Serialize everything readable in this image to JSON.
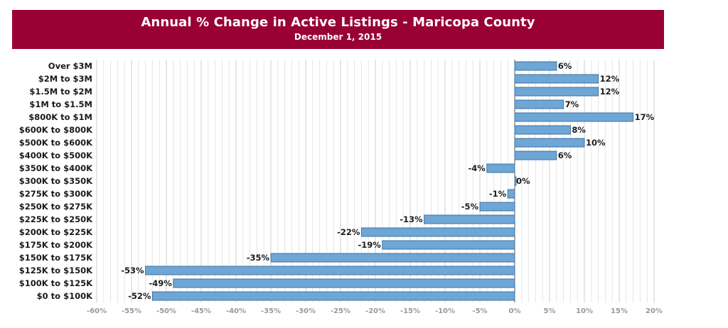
{
  "title": "Annual % Change in Active Listings - Maricopa County",
  "subtitle": "December 1, 2015",
  "colors": {
    "header_bg": "#990033",
    "bar_fill": "#6ea6d6",
    "bar_stroke": "#3f73a3",
    "grid": "#d9d9d9",
    "tick_text": "#999999"
  },
  "chart_data": {
    "type": "bar",
    "orientation": "horizontal",
    "title": "Annual % Change in Active Listings - Maricopa County",
    "subtitle": "December 1, 2015",
    "categories": [
      "Over $3M",
      "$2M to $3M",
      "$1.5M to $2M",
      "$1M to $1.5M",
      "$800K to $1M",
      "$600K to $800K",
      "$500K to $600K",
      "$400K to $500K",
      "$350K to $400K",
      "$300K to $350K",
      "$275K to $300K",
      "$250K to $275K",
      "$225K to $250K",
      "$200K to $225K",
      "$175K to $200K",
      "$150K to $175K",
      "$125K to $150K",
      "$100K to $125K",
      "$0 to $100K"
    ],
    "values": [
      6,
      12,
      12,
      7,
      17,
      8,
      10,
      6,
      -4,
      0,
      -1,
      -5,
      -13,
      -22,
      -19,
      -35,
      -53,
      -49,
      -52
    ],
    "value_labels": [
      "6%",
      "12%",
      "12%",
      "7%",
      "17%",
      "8%",
      "10%",
      "6%",
      "-4%",
      "0%",
      "-1%",
      "-5%",
      "-13%",
      "-22%",
      "-19%",
      "-35%",
      "-53%",
      "-49%",
      "-52%"
    ],
    "xlim": [
      -60,
      20
    ],
    "x_ticks": [
      -60,
      -55,
      -50,
      -45,
      -40,
      -35,
      -30,
      -25,
      -20,
      -15,
      -10,
      -5,
      0,
      5,
      10,
      15,
      20
    ],
    "x_tick_labels": [
      "-60%",
      "-55%",
      "-50%",
      "-45%",
      "-40%",
      "-35%",
      "-30%",
      "-25%",
      "-20%",
      "-15%",
      "-10%",
      "-5%",
      "0%",
      "5%",
      "10%",
      "15%",
      "20%"
    ],
    "grid": true,
    "xlabel": "",
    "ylabel": ""
  }
}
